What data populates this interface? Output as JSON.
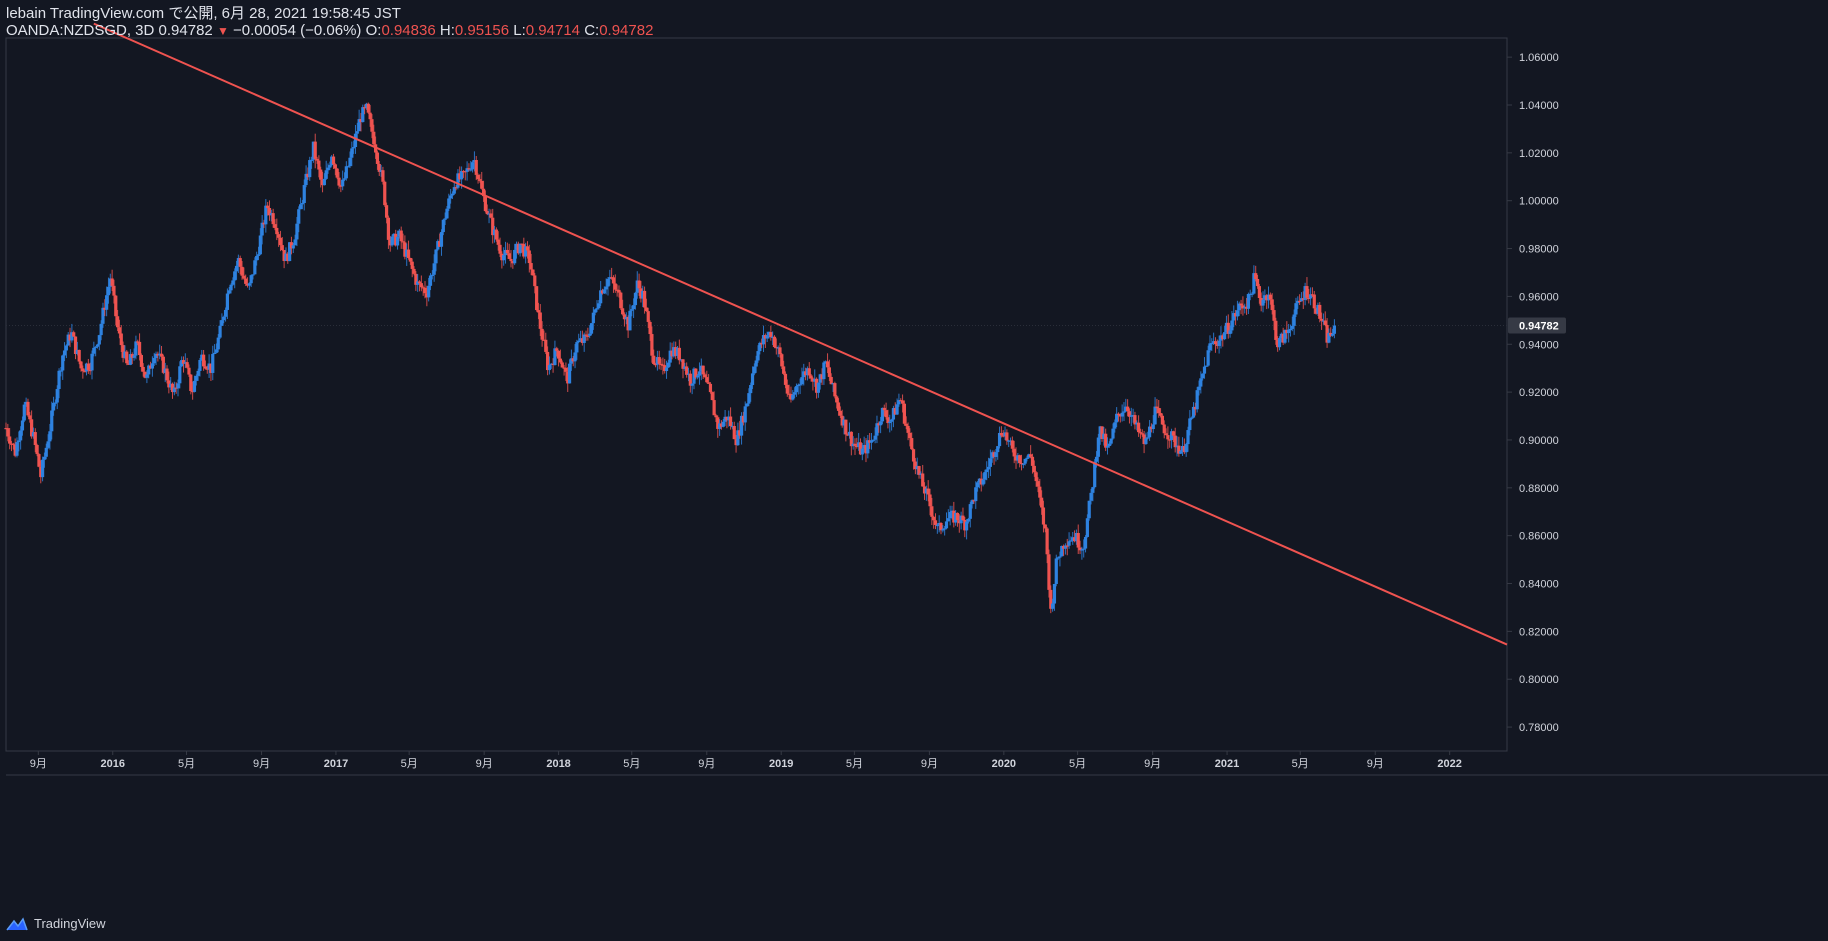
{
  "header": {
    "publisher": "lebain TradingView.com で公開, 6月 28, 2021 19:58:45 JST",
    "symbol": "OANDA:NZDSGD, 3D",
    "last": "0.94782",
    "change_arrow": "▼",
    "change": "−0.00054 (−0.06%)",
    "o_label": "O:",
    "o": "0.94836",
    "h_label": "H:",
    "h": "0.95156",
    "l_label": "L:",
    "l": "0.94714",
    "c_label": "C:",
    "c": "0.94782"
  },
  "brand": {
    "name": "TradingView",
    "icon": "tradingview-logo-icon"
  },
  "colors": {
    "background": "#131722",
    "up": "#2e82e0",
    "down": "#ef5350",
    "trendline": "#ef5350",
    "axis_text": "#d1d4dc",
    "border": "#363a45",
    "price_tag_bg": "#363a45"
  },
  "chart_data": {
    "type": "candlestick",
    "symbol": "OANDA:NZDSGD",
    "interval": "3D",
    "y_ticks": [
      "0.78000",
      "0.80000",
      "0.82000",
      "0.84000",
      "0.86000",
      "0.88000",
      "0.90000",
      "0.92000",
      "0.94000",
      "0.96000",
      "0.98000",
      "1.00000",
      "1.02000",
      "1.04000",
      "1.06000"
    ],
    "ylim": [
      0.77,
      1.068
    ],
    "x_ticks": [
      {
        "label": "9月",
        "date": "2015-09-01",
        "bold": false
      },
      {
        "label": "2016",
        "date": "2016-01-01",
        "bold": true
      },
      {
        "label": "5月",
        "date": "2016-05-01",
        "bold": false
      },
      {
        "label": "9月",
        "date": "2016-09-01",
        "bold": false
      },
      {
        "label": "2017",
        "date": "2017-01-01",
        "bold": true
      },
      {
        "label": "5月",
        "date": "2017-05-01",
        "bold": false
      },
      {
        "label": "9月",
        "date": "2017-09-01",
        "bold": false
      },
      {
        "label": "2018",
        "date": "2018-01-01",
        "bold": true
      },
      {
        "label": "5月",
        "date": "2018-05-01",
        "bold": false
      },
      {
        "label": "9月",
        "date": "2018-09-01",
        "bold": false
      },
      {
        "label": "2019",
        "date": "2019-01-01",
        "bold": true
      },
      {
        "label": "5月",
        "date": "2019-05-01",
        "bold": false
      },
      {
        "label": "9月",
        "date": "2019-09-01",
        "bold": false
      },
      {
        "label": "2020",
        "date": "2020-01-01",
        "bold": true
      },
      {
        "label": "5月",
        "date": "2020-05-01",
        "bold": false
      },
      {
        "label": "9月",
        "date": "2020-09-01",
        "bold": false
      },
      {
        "label": "2021",
        "date": "2021-01-01",
        "bold": true
      },
      {
        "label": "5月",
        "date": "2021-05-01",
        "bold": false
      },
      {
        "label": "9月",
        "date": "2021-09-01",
        "bold": false
      },
      {
        "label": "2022",
        "date": "2022-01-01",
        "bold": true
      }
    ],
    "xlim": [
      "2015-07-10",
      "2022-04-05"
    ],
    "current_price": "0.94782",
    "close_path": [
      [
        "2015-07-10",
        0.905
      ],
      [
        "2015-07-25",
        0.895
      ],
      [
        "2015-08-10",
        0.915
      ],
      [
        "2015-08-25",
        0.9
      ],
      [
        "2015-09-05",
        0.885
      ],
      [
        "2015-09-20",
        0.905
      ],
      [
        "2015-10-10",
        0.935
      ],
      [
        "2015-10-25",
        0.945
      ],
      [
        "2015-11-10",
        0.93
      ],
      [
        "2015-11-25",
        0.932
      ],
      [
        "2015-12-10",
        0.945
      ],
      [
        "2015-12-20",
        0.958
      ],
      [
        "2015-12-28",
        0.968
      ],
      [
        "2016-01-10",
        0.945
      ],
      [
        "2016-01-25",
        0.93
      ],
      [
        "2016-02-10",
        0.94
      ],
      [
        "2016-02-25",
        0.925
      ],
      [
        "2016-03-10",
        0.938
      ],
      [
        "2016-03-25",
        0.93
      ],
      [
        "2016-04-10",
        0.918
      ],
      [
        "2016-04-25",
        0.935
      ],
      [
        "2016-05-10",
        0.92
      ],
      [
        "2016-05-25",
        0.935
      ],
      [
        "2016-06-10",
        0.93
      ],
      [
        "2016-06-25",
        0.945
      ],
      [
        "2016-07-10",
        0.965
      ],
      [
        "2016-07-25",
        0.975
      ],
      [
        "2016-08-10",
        0.962
      ],
      [
        "2016-08-25",
        0.978
      ],
      [
        "2016-09-10",
        0.998
      ],
      [
        "2016-09-25",
        0.99
      ],
      [
        "2016-10-10",
        0.975
      ],
      [
        "2016-10-25",
        0.985
      ],
      [
        "2016-11-10",
        1.005
      ],
      [
        "2016-11-25",
        1.022
      ],
      [
        "2016-12-10",
        1.005
      ],
      [
        "2016-12-25",
        1.02
      ],
      [
        "2017-01-10",
        1.005
      ],
      [
        "2017-01-25",
        1.018
      ],
      [
        "2017-02-10",
        1.035
      ],
      [
        "2017-02-20",
        1.038
      ],
      [
        "2017-03-05",
        1.025
      ],
      [
        "2017-03-20",
        1.005
      ],
      [
        "2017-03-30",
        0.982
      ],
      [
        "2017-04-15",
        0.985
      ],
      [
        "2017-04-30",
        0.975
      ],
      [
        "2017-05-15",
        0.965
      ],
      [
        "2017-05-30",
        0.962
      ],
      [
        "2017-06-15",
        0.978
      ],
      [
        "2017-06-30",
        0.995
      ],
      [
        "2017-07-15",
        1.008
      ],
      [
        "2017-07-30",
        1.01
      ],
      [
        "2017-08-15",
        1.018
      ],
      [
        "2017-08-30",
        1.002
      ],
      [
        "2017-09-15",
        0.988
      ],
      [
        "2017-09-30",
        0.978
      ],
      [
        "2017-10-15",
        0.975
      ],
      [
        "2017-10-30",
        0.982
      ],
      [
        "2017-11-15",
        0.975
      ],
      [
        "2017-11-30",
        0.95
      ],
      [
        "2017-12-15",
        0.93
      ],
      [
        "2017-12-30",
        0.938
      ],
      [
        "2018-01-15",
        0.925
      ],
      [
        "2018-01-30",
        0.94
      ],
      [
        "2018-02-15",
        0.942
      ],
      [
        "2018-02-28",
        0.952
      ],
      [
        "2018-03-10",
        0.962
      ],
      [
        "2018-03-25",
        0.968
      ],
      [
        "2018-04-10",
        0.96
      ],
      [
        "2018-04-25",
        0.948
      ],
      [
        "2018-05-10",
        0.965
      ],
      [
        "2018-05-20",
        0.96
      ],
      [
        "2018-06-05",
        0.935
      ],
      [
        "2018-06-20",
        0.928
      ],
      [
        "2018-07-05",
        0.938
      ],
      [
        "2018-07-20",
        0.935
      ],
      [
        "2018-08-05",
        0.925
      ],
      [
        "2018-08-20",
        0.93
      ],
      [
        "2018-09-05",
        0.92
      ],
      [
        "2018-09-20",
        0.905
      ],
      [
        "2018-10-05",
        0.91
      ],
      [
        "2018-10-20",
        0.9
      ],
      [
        "2018-11-05",
        0.915
      ],
      [
        "2018-11-20",
        0.935
      ],
      [
        "2018-12-05",
        0.943
      ],
      [
        "2018-12-15",
        0.945
      ],
      [
        "2018-12-30",
        0.935
      ],
      [
        "2019-01-15",
        0.915
      ],
      [
        "2019-01-30",
        0.925
      ],
      [
        "2019-02-15",
        0.93
      ],
      [
        "2019-03-01",
        0.922
      ],
      [
        "2019-03-15",
        0.932
      ],
      [
        "2019-03-30",
        0.918
      ],
      [
        "2019-04-15",
        0.906
      ],
      [
        "2019-04-30",
        0.898
      ],
      [
        "2019-05-15",
        0.895
      ],
      [
        "2019-05-30",
        0.9
      ],
      [
        "2019-06-15",
        0.912
      ],
      [
        "2019-06-30",
        0.908
      ],
      [
        "2019-07-15",
        0.918
      ],
      [
        "2019-07-30",
        0.9
      ],
      [
        "2019-08-15",
        0.885
      ],
      [
        "2019-08-30",
        0.875
      ],
      [
        "2019-09-15",
        0.862
      ],
      [
        "2019-09-30",
        0.867
      ],
      [
        "2019-10-15",
        0.868
      ],
      [
        "2019-10-30",
        0.865
      ],
      [
        "2019-11-15",
        0.878
      ],
      [
        "2019-11-30",
        0.885
      ],
      [
        "2019-12-15",
        0.895
      ],
      [
        "2019-12-30",
        0.905
      ],
      [
        "2020-01-15",
        0.895
      ],
      [
        "2020-01-30",
        0.892
      ],
      [
        "2020-02-15",
        0.893
      ],
      [
        "2020-02-25",
        0.88
      ],
      [
        "2020-03-10",
        0.86
      ],
      [
        "2020-03-18",
        0.828
      ],
      [
        "2020-03-28",
        0.85
      ],
      [
        "2020-04-10",
        0.858
      ],
      [
        "2020-04-25",
        0.86
      ],
      [
        "2020-05-10",
        0.855
      ],
      [
        "2020-05-25",
        0.88
      ],
      [
        "2020-06-05",
        0.905
      ],
      [
        "2020-06-20",
        0.895
      ],
      [
        "2020-07-05",
        0.91
      ],
      [
        "2020-07-20",
        0.915
      ],
      [
        "2020-08-05",
        0.905
      ],
      [
        "2020-08-20",
        0.898
      ],
      [
        "2020-09-05",
        0.912
      ],
      [
        "2020-09-20",
        0.905
      ],
      [
        "2020-10-05",
        0.9
      ],
      [
        "2020-10-20",
        0.895
      ],
      [
        "2020-11-05",
        0.91
      ],
      [
        "2020-11-20",
        0.925
      ],
      [
        "2020-12-05",
        0.94
      ],
      [
        "2020-12-20",
        0.942
      ],
      [
        "2021-01-05",
        0.948
      ],
      [
        "2021-01-20",
        0.955
      ],
      [
        "2021-02-05",
        0.958
      ],
      [
        "2021-02-15",
        0.968
      ],
      [
        "2021-02-25",
        0.958
      ],
      [
        "2021-03-10",
        0.962
      ],
      [
        "2021-03-25",
        0.94
      ],
      [
        "2021-04-10",
        0.945
      ],
      [
        "2021-04-25",
        0.955
      ],
      [
        "2021-05-10",
        0.963
      ],
      [
        "2021-05-20",
        0.96
      ],
      [
        "2021-06-05",
        0.95
      ],
      [
        "2021-06-15",
        0.942
      ],
      [
        "2021-06-28",
        0.9478
      ]
    ],
    "trendline": {
      "start": [
        "2015-12-01",
        1.074
      ],
      "end": [
        "2022-04-05",
        0.8145
      ],
      "extend_right": true
    }
  }
}
